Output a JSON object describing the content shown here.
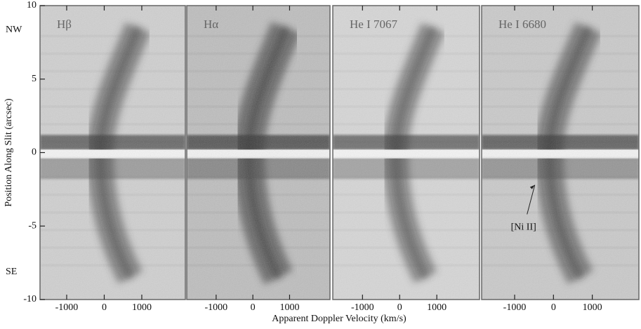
{
  "chart_data": [
    {
      "type": "spectrum",
      "title": "Hβ",
      "xlim": [
        -1710,
        2160
      ],
      "xticks": [
        -1000,
        0,
        1000
      ],
      "ylim": [
        -10,
        10
      ],
      "yticks": [
        -10,
        -5,
        0,
        5,
        10
      ],
      "ylabel": "Position Along Slit (arcsec)",
      "annotations": [
        "NW",
        "SE"
      ],
      "shade": 0.45
    },
    {
      "type": "spectrum",
      "title": "Hα",
      "xlim": [
        -1800,
        2100
      ],
      "xticks": [
        -1000,
        0,
        1000
      ],
      "ylim": [
        -10,
        10
      ],
      "xlabel": "Apparent Doppler Velocity (km/s)",
      "shade": 0.75
    },
    {
      "type": "spectrum",
      "title": "He I 7067",
      "xlim": [
        -1800,
        2150
      ],
      "xticks": [
        -1000,
        0,
        1000
      ],
      "ylim": [
        -10,
        10
      ],
      "shade": 0.35
    },
    {
      "type": "spectrum",
      "title": "He I 6680",
      "xlim": [
        -1850,
        2200
      ],
      "xticks": [
        -1000,
        0,
        1000
      ],
      "ylim": [
        -10,
        10
      ],
      "annotations": [
        "[Ni II]"
      ],
      "shade": 0.55
    }
  ]
}
